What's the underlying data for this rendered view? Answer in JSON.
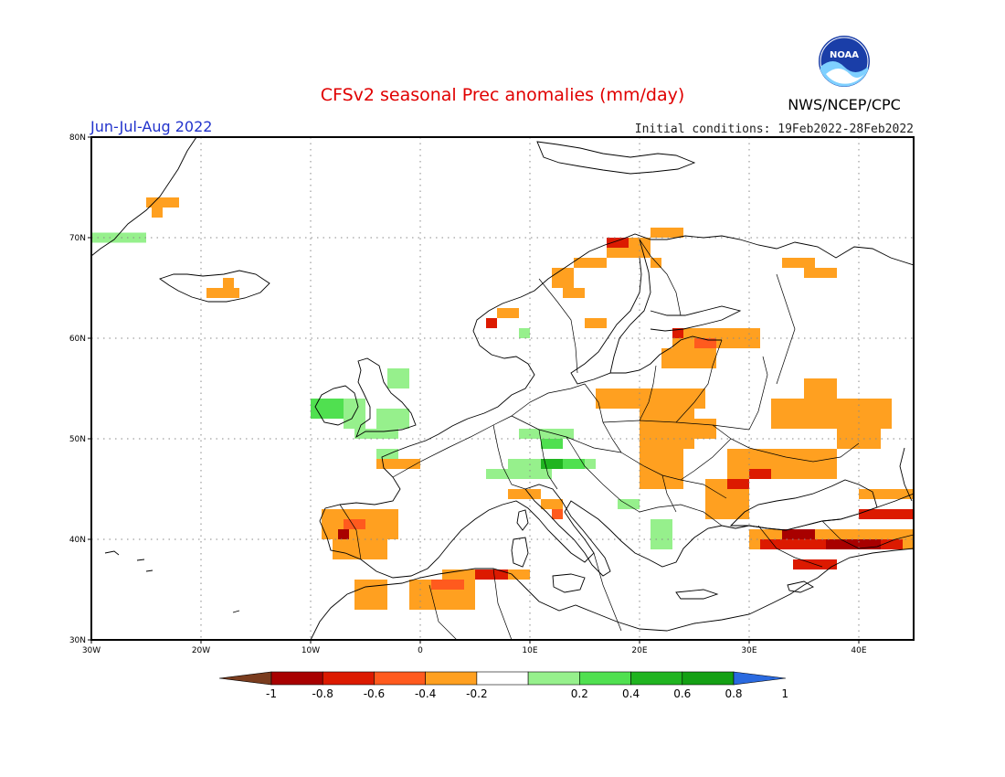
{
  "title": "CFSv2 seasonal Prec anomalies (mm/day)",
  "season": "Jun-Jul-Aug 2022",
  "initial_conditions": "Initial conditions: 19Feb2022-28Feb2022",
  "agency": "NWS/NCEP/CPC",
  "logo": {
    "text": "NOAA",
    "icon": "noaa-logo-icon"
  },
  "map": {
    "lon_range": [
      -30,
      45
    ],
    "lat_range": [
      30,
      80
    ],
    "x_ticks": [
      "30W",
      "20W",
      "10W",
      "0",
      "10E",
      "20E",
      "30E",
      "40E"
    ],
    "y_ticks": [
      "30N",
      "40N",
      "50N",
      "60N",
      "70N",
      "80N"
    ]
  },
  "colorbar": {
    "labels": [
      "-1",
      "-0.8",
      "-0.6",
      "-0.4",
      "-0.2",
      "0.2",
      "0.4",
      "0.6",
      "0.8",
      "1"
    ],
    "colors": [
      "#7a3c1e",
      "#a80000",
      "#dc1a00",
      "#ff5a1e",
      "#ffa020",
      "#ffffff",
      "#96f08c",
      "#50e050",
      "#20b420",
      "#14a014",
      "#2a6ae0"
    ]
  },
  "anomalies": [
    {
      "lon": -25,
      "lat": 73,
      "w": 3,
      "h": 1,
      "c": "#ffa020"
    },
    {
      "lon": -24.5,
      "lat": 72,
      "w": 1,
      "h": 1,
      "c": "#ffa020"
    },
    {
      "lon": -30,
      "lat": 69.5,
      "w": 5,
      "h": 1,
      "c": "#96f08c"
    },
    {
      "lon": -19.5,
      "lat": 64,
      "w": 3,
      "h": 1,
      "c": "#ffa020"
    },
    {
      "lon": -18,
      "lat": 65,
      "w": 1,
      "h": 1,
      "c": "#ffa020"
    },
    {
      "lon": 17,
      "lat": 68,
      "w": 4,
      "h": 2,
      "c": "#ffa020"
    },
    {
      "lon": 21,
      "lat": 70,
      "w": 3,
      "h": 1,
      "c": "#ffa020"
    },
    {
      "lon": 14,
      "lat": 67,
      "w": 3,
      "h": 1,
      "c": "#ffa020"
    },
    {
      "lon": 12,
      "lat": 65,
      "w": 2,
      "h": 2,
      "c": "#ffa020"
    },
    {
      "lon": 17,
      "lat": 69,
      "w": 2,
      "h": 1,
      "c": "#dc1a00"
    },
    {
      "lon": 7,
      "lat": 62,
      "w": 2,
      "h": 1,
      "c": "#ffa020"
    },
    {
      "lon": 6,
      "lat": 61,
      "w": 1,
      "h": 1,
      "c": "#dc1a00"
    },
    {
      "lon": 9,
      "lat": 60,
      "w": 1,
      "h": 1,
      "c": "#96f08c"
    },
    {
      "lon": 15,
      "lat": 61,
      "w": 2,
      "h": 1,
      "c": "#ffa020"
    },
    {
      "lon": 21,
      "lat": 67,
      "w": 1,
      "h": 1,
      "c": "#ffa020"
    },
    {
      "lon": 13,
      "lat": 64,
      "w": 2,
      "h": 1,
      "c": "#ffa020"
    },
    {
      "lon": 23,
      "lat": 60,
      "w": 8,
      "h": 1,
      "c": "#ffa020"
    },
    {
      "lon": 23,
      "lat": 59,
      "w": 8,
      "h": 1,
      "c": "#ffa020"
    },
    {
      "lon": 23,
      "lat": 60,
      "w": 1,
      "h": 1,
      "c": "#dc1a00"
    },
    {
      "lon": 25,
      "lat": 59,
      "w": 2,
      "h": 1,
      "c": "#ff5a1e"
    },
    {
      "lon": 22,
      "lat": 57,
      "w": 5,
      "h": 2,
      "c": "#ffa020"
    },
    {
      "lon": 35,
      "lat": 66,
      "w": 3,
      "h": 1,
      "c": "#ffa020"
    },
    {
      "lon": 33,
      "lat": 67,
      "w": 3,
      "h": 1,
      "c": "#ffa020"
    },
    {
      "lon": 16,
      "lat": 53,
      "w": 10,
      "h": 2,
      "c": "#ffa020"
    },
    {
      "lon": 20,
      "lat": 49,
      "w": 5,
      "h": 4,
      "c": "#ffa020"
    },
    {
      "lon": 20,
      "lat": 45,
      "w": 4,
      "h": 4,
      "c": "#ffa020"
    },
    {
      "lon": 22,
      "lat": 50,
      "w": 5,
      "h": 2,
      "c": "#ffa020"
    },
    {
      "lon": 32,
      "lat": 51,
      "w": 11,
      "h": 3,
      "c": "#ffa020"
    },
    {
      "lon": 35,
      "lat": 54,
      "w": 3,
      "h": 2,
      "c": "#ffa020"
    },
    {
      "lon": 38,
      "lat": 49,
      "w": 4,
      "h": 2,
      "c": "#ffa020"
    },
    {
      "lon": 28,
      "lat": 46,
      "w": 10,
      "h": 3,
      "c": "#ffa020"
    },
    {
      "lon": 26,
      "lat": 42,
      "w": 4,
      "h": 4,
      "c": "#ffa020"
    },
    {
      "lon": 28,
      "lat": 45,
      "w": 2,
      "h": 1,
      "c": "#dc1a00"
    },
    {
      "lon": 30,
      "lat": 46,
      "w": 2,
      "h": 1,
      "c": "#dc1a00"
    },
    {
      "lon": 40,
      "lat": 44,
      "w": 5,
      "h": 1,
      "c": "#ffa020"
    },
    {
      "lon": 40,
      "lat": 42,
      "w": 5,
      "h": 1,
      "c": "#dc1a00"
    },
    {
      "lon": 30,
      "lat": 39,
      "w": 15,
      "h": 2,
      "c": "#ffa020"
    },
    {
      "lon": 31,
      "lat": 39,
      "w": 13,
      "h": 1,
      "c": "#dc1a00"
    },
    {
      "lon": 33,
      "lat": 40,
      "w": 3,
      "h": 1,
      "c": "#a80000"
    },
    {
      "lon": 37,
      "lat": 39,
      "w": 5,
      "h": 1,
      "c": "#a80000"
    },
    {
      "lon": 34,
      "lat": 37,
      "w": 4,
      "h": 1,
      "c": "#dc1a00"
    },
    {
      "lon": -9,
      "lat": 40,
      "w": 7,
      "h": 3,
      "c": "#ffa020"
    },
    {
      "lon": -8,
      "lat": 38,
      "w": 5,
      "h": 2,
      "c": "#ffa020"
    },
    {
      "lon": -7,
      "lat": 41,
      "w": 2,
      "h": 1,
      "c": "#ff5a1e"
    },
    {
      "lon": -7.5,
      "lat": 40,
      "w": 1,
      "h": 1,
      "c": "#a80000"
    },
    {
      "lon": -6,
      "lat": 33,
      "w": 3,
      "h": 3,
      "c": "#ffa020"
    },
    {
      "lon": -1,
      "lat": 33,
      "w": 6,
      "h": 3,
      "c": "#ffa020"
    },
    {
      "lon": 2,
      "lat": 36,
      "w": 8,
      "h": 1,
      "c": "#ffa020"
    },
    {
      "lon": 1,
      "lat": 35,
      "w": 3,
      "h": 1,
      "c": "#ff5a1e"
    },
    {
      "lon": 5,
      "lat": 36,
      "w": 3,
      "h": 1,
      "c": "#dc1a00"
    },
    {
      "lon": -4,
      "lat": 47,
      "w": 4,
      "h": 1,
      "c": "#ffa020"
    },
    {
      "lon": 8,
      "lat": 44,
      "w": 3,
      "h": 1,
      "c": "#ffa020"
    },
    {
      "lon": 11,
      "lat": 43,
      "w": 2,
      "h": 1,
      "c": "#ffa020"
    },
    {
      "lon": 12,
      "lat": 42,
      "w": 1,
      "h": 1,
      "c": "#ff5a1e"
    },
    {
      "lon": -10,
      "lat": 52,
      "w": 3,
      "h": 2,
      "c": "#50e050"
    },
    {
      "lon": -7,
      "lat": 51,
      "w": 2,
      "h": 3,
      "c": "#96f08c"
    },
    {
      "lon": -4,
      "lat": 51,
      "w": 3,
      "h": 2,
      "c": "#96f08c"
    },
    {
      "lon": -3,
      "lat": 55,
      "w": 2,
      "h": 2,
      "c": "#96f08c"
    },
    {
      "lon": -6,
      "lat": 50,
      "w": 4,
      "h": 1,
      "c": "#96f08c"
    },
    {
      "lon": -4,
      "lat": 48,
      "w": 2,
      "h": 1,
      "c": "#96f08c"
    },
    {
      "lon": 9,
      "lat": 50,
      "w": 5,
      "h": 1,
      "c": "#96f08c"
    },
    {
      "lon": 11,
      "lat": 49,
      "w": 2,
      "h": 1,
      "c": "#50e050"
    },
    {
      "lon": 8,
      "lat": 47,
      "w": 8,
      "h": 1,
      "c": "#96f08c"
    },
    {
      "lon": 11,
      "lat": 47,
      "w": 2,
      "h": 1,
      "c": "#20b420"
    },
    {
      "lon": 13,
      "lat": 47,
      "w": 2,
      "h": 1,
      "c": "#50e050"
    },
    {
      "lon": 6,
      "lat": 46,
      "w": 6,
      "h": 1,
      "c": "#96f08c"
    },
    {
      "lon": 18,
      "lat": 43,
      "w": 2,
      "h": 1,
      "c": "#96f08c"
    },
    {
      "lon": 21,
      "lat": 39,
      "w": 2,
      "h": 3,
      "c": "#96f08c"
    }
  ]
}
